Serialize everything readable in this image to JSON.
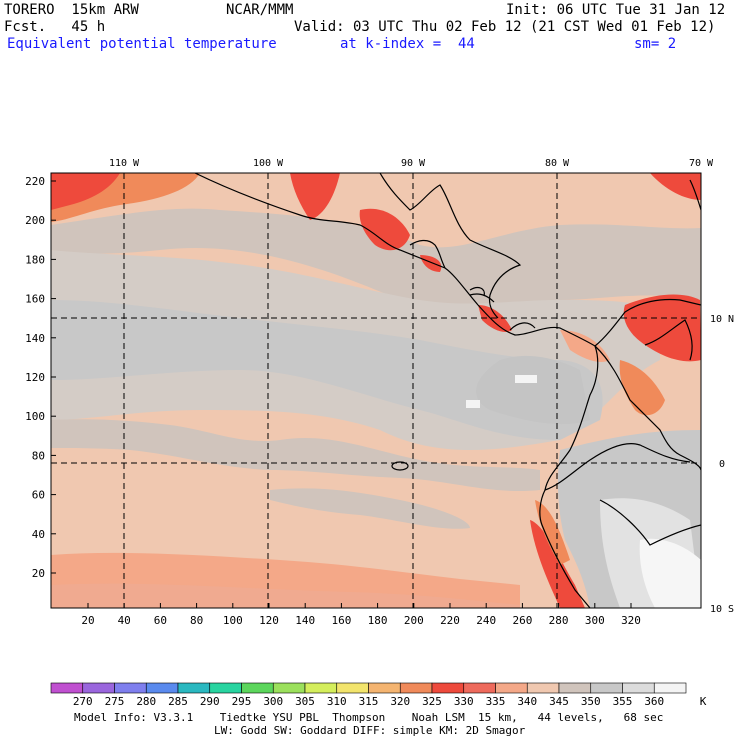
{
  "header": {
    "model": "TORERO  15km ARW",
    "org": "NCAR/MMM",
    "init": "Init: 06 UTC Tue 31 Jan 12",
    "fcst": "Fcst.   45 h",
    "valid": "Valid: 03 UTC Thu 02 Feb 12 (21 CST Wed 01 Feb 12)",
    "field": "Equivalent potential temperature",
    "level": "at k-index =  44",
    "smooth": "sm= 2"
  },
  "map": {
    "lon_labels": [
      "110 W",
      "100 W",
      "90 W",
      "80 W",
      "70 W"
    ],
    "lat_labels": [
      "10 N",
      "0",
      "10 S"
    ],
    "y_ticks": [
      "220",
      "200",
      "180",
      "160",
      "140",
      "120",
      "100",
      "80",
      "60",
      "40",
      "20"
    ],
    "x_ticks": [
      "20",
      "40",
      "60",
      "80",
      "100",
      "120",
      "140",
      "160",
      "180",
      "200",
      "220",
      "240",
      "260",
      "280",
      "300",
      "320"
    ]
  },
  "colorbar": {
    "unit": "K",
    "labels": [
      "270",
      "275",
      "280",
      "285",
      "290",
      "295",
      "300",
      "305",
      "310",
      "315",
      "320",
      "325",
      "330",
      "335",
      "340",
      "345",
      "350",
      "355",
      "360"
    ],
    "colors": [
      "#c050d0",
      "#9a66dd",
      "#7f7fee",
      "#5a8aee",
      "#2ab8c0",
      "#28d4a0",
      "#5cd65c",
      "#9be05c",
      "#d4ee5c",
      "#f2e46c",
      "#f4b470",
      "#f08a5a",
      "#ee4a3c",
      "#ee6a5c",
      "#f4a888",
      "#f0c8b0",
      "#d0c4bc",
      "#c8c8c8",
      "#dcdcdc",
      "#f4f4f4"
    ]
  },
  "footer": {
    "line1": "Model Info: V3.3.1    Tiedtke YSU PBL  Thompson    Noah LSM  15 km,   44 levels,   68 sec",
    "line2": "LW: Godd SW: Goddard DIFF: simple KM: 2D Smagor"
  }
}
